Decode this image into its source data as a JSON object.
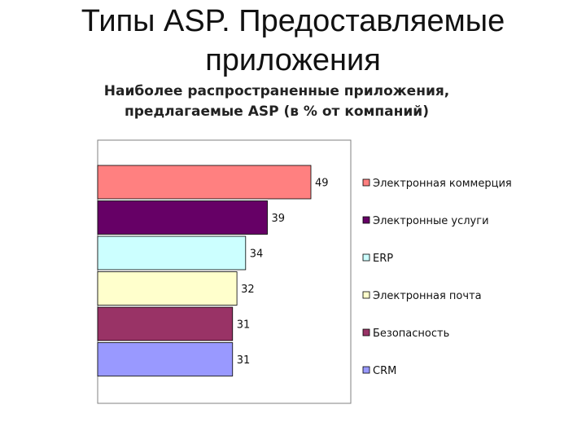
{
  "slide": {
    "title_line1": "Типы ASP. Предоставляемые",
    "title_line2": "приложения"
  },
  "chart_data": {
    "type": "bar",
    "orientation": "horizontal",
    "title_line1": "Наиболее распространенные приложения,",
    "title_line2": "предлагаемые ASP (в % от компаний)",
    "categories": [
      "Электронная коммерция",
      "Электронные услуги",
      "ERP",
      "Электронная почта",
      "Безопасность",
      "CRM"
    ],
    "values": [
      49,
      39,
      34,
      32,
      31,
      31
    ],
    "colors": [
      "#ff8080",
      "#660066",
      "#ccffff",
      "#ffffcc",
      "#993366",
      "#9999ff"
    ],
    "xlim": [
      0,
      60
    ],
    "grid": false,
    "legend": "right"
  }
}
